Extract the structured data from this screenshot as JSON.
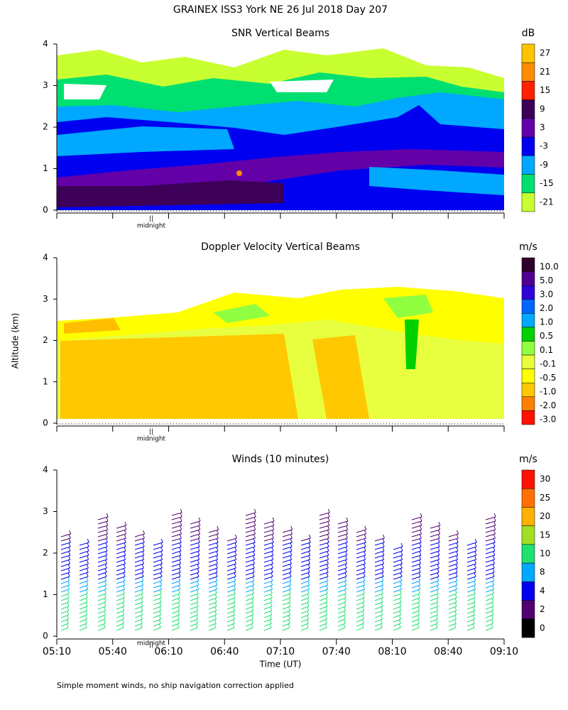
{
  "title": "GRAINEX ISS3 York NE  26 Jul 2018 Day 207",
  "y_label": "Altitude (km)",
  "x_label": "Time (UT)",
  "midnight_label": "midnight",
  "footnote": "Simple moment winds, no ship navigation correction applied",
  "xticks": [
    "05:10",
    "05:40",
    "06:10",
    "06:40",
    "07:10",
    "07:40",
    "08:10",
    "08:40",
    "09:10"
  ],
  "panels": [
    {
      "title": "SNR Vertical Beams",
      "unit": "dB",
      "ylim": [
        0,
        4
      ],
      "yticks": [
        0,
        1,
        2,
        3,
        4
      ],
      "colorbar": {
        "levels": [
          27,
          21,
          15,
          9,
          3,
          -3,
          -9,
          -15,
          -21
        ],
        "colors": [
          "#ffc400",
          "#ff8c00",
          "#ff2000",
          "#3c0058",
          "#6400a8",
          "#0000f0",
          "#00a8ff",
          "#00e070",
          "#c8ff30"
        ]
      }
    },
    {
      "title": "Doppler Velocity Vertical Beams",
      "unit": "m/s",
      "ylim": [
        0,
        4
      ],
      "yticks": [
        0,
        1,
        2,
        3,
        4
      ],
      "colorbar": {
        "levels": [
          {
            "value": 10,
            "label": "10.0"
          },
          {
            "value": 5,
            "label": "5.0"
          },
          {
            "value": 3,
            "label": "3.0"
          },
          {
            "value": 2,
            "label": "2.0"
          },
          {
            "value": 1,
            "label": "1.0"
          },
          0.5,
          0.1,
          -0.1,
          -0.5,
          {
            "value": -1,
            "label": "-1.0"
          },
          {
            "value": -2,
            "label": "-2.0"
          },
          {
            "value": -3,
            "label": "-3.0"
          }
        ],
        "colors": [
          "#30002c",
          "#500090",
          "#3000d8",
          "#0064ff",
          "#00aaff",
          "#00d000",
          "#90ff40",
          "#e8ff40",
          "#ffff00",
          "#ffc800",
          "#ff8000",
          "#ff1000"
        ]
      }
    },
    {
      "title": "Winds (10 minutes)",
      "unit": "m/s",
      "ylim": [
        0,
        4
      ],
      "yticks": [
        0,
        1,
        2,
        3,
        4
      ],
      "colorbar": {
        "levels": [
          30,
          25,
          20,
          15,
          10,
          8,
          4,
          2,
          0
        ],
        "colors": [
          "#ff1000",
          "#ff7000",
          "#ffb000",
          "#a0e020",
          "#20e070",
          "#00a8ff",
          "#0000f0",
          "#500070",
          "#000000"
        ]
      }
    }
  ]
}
